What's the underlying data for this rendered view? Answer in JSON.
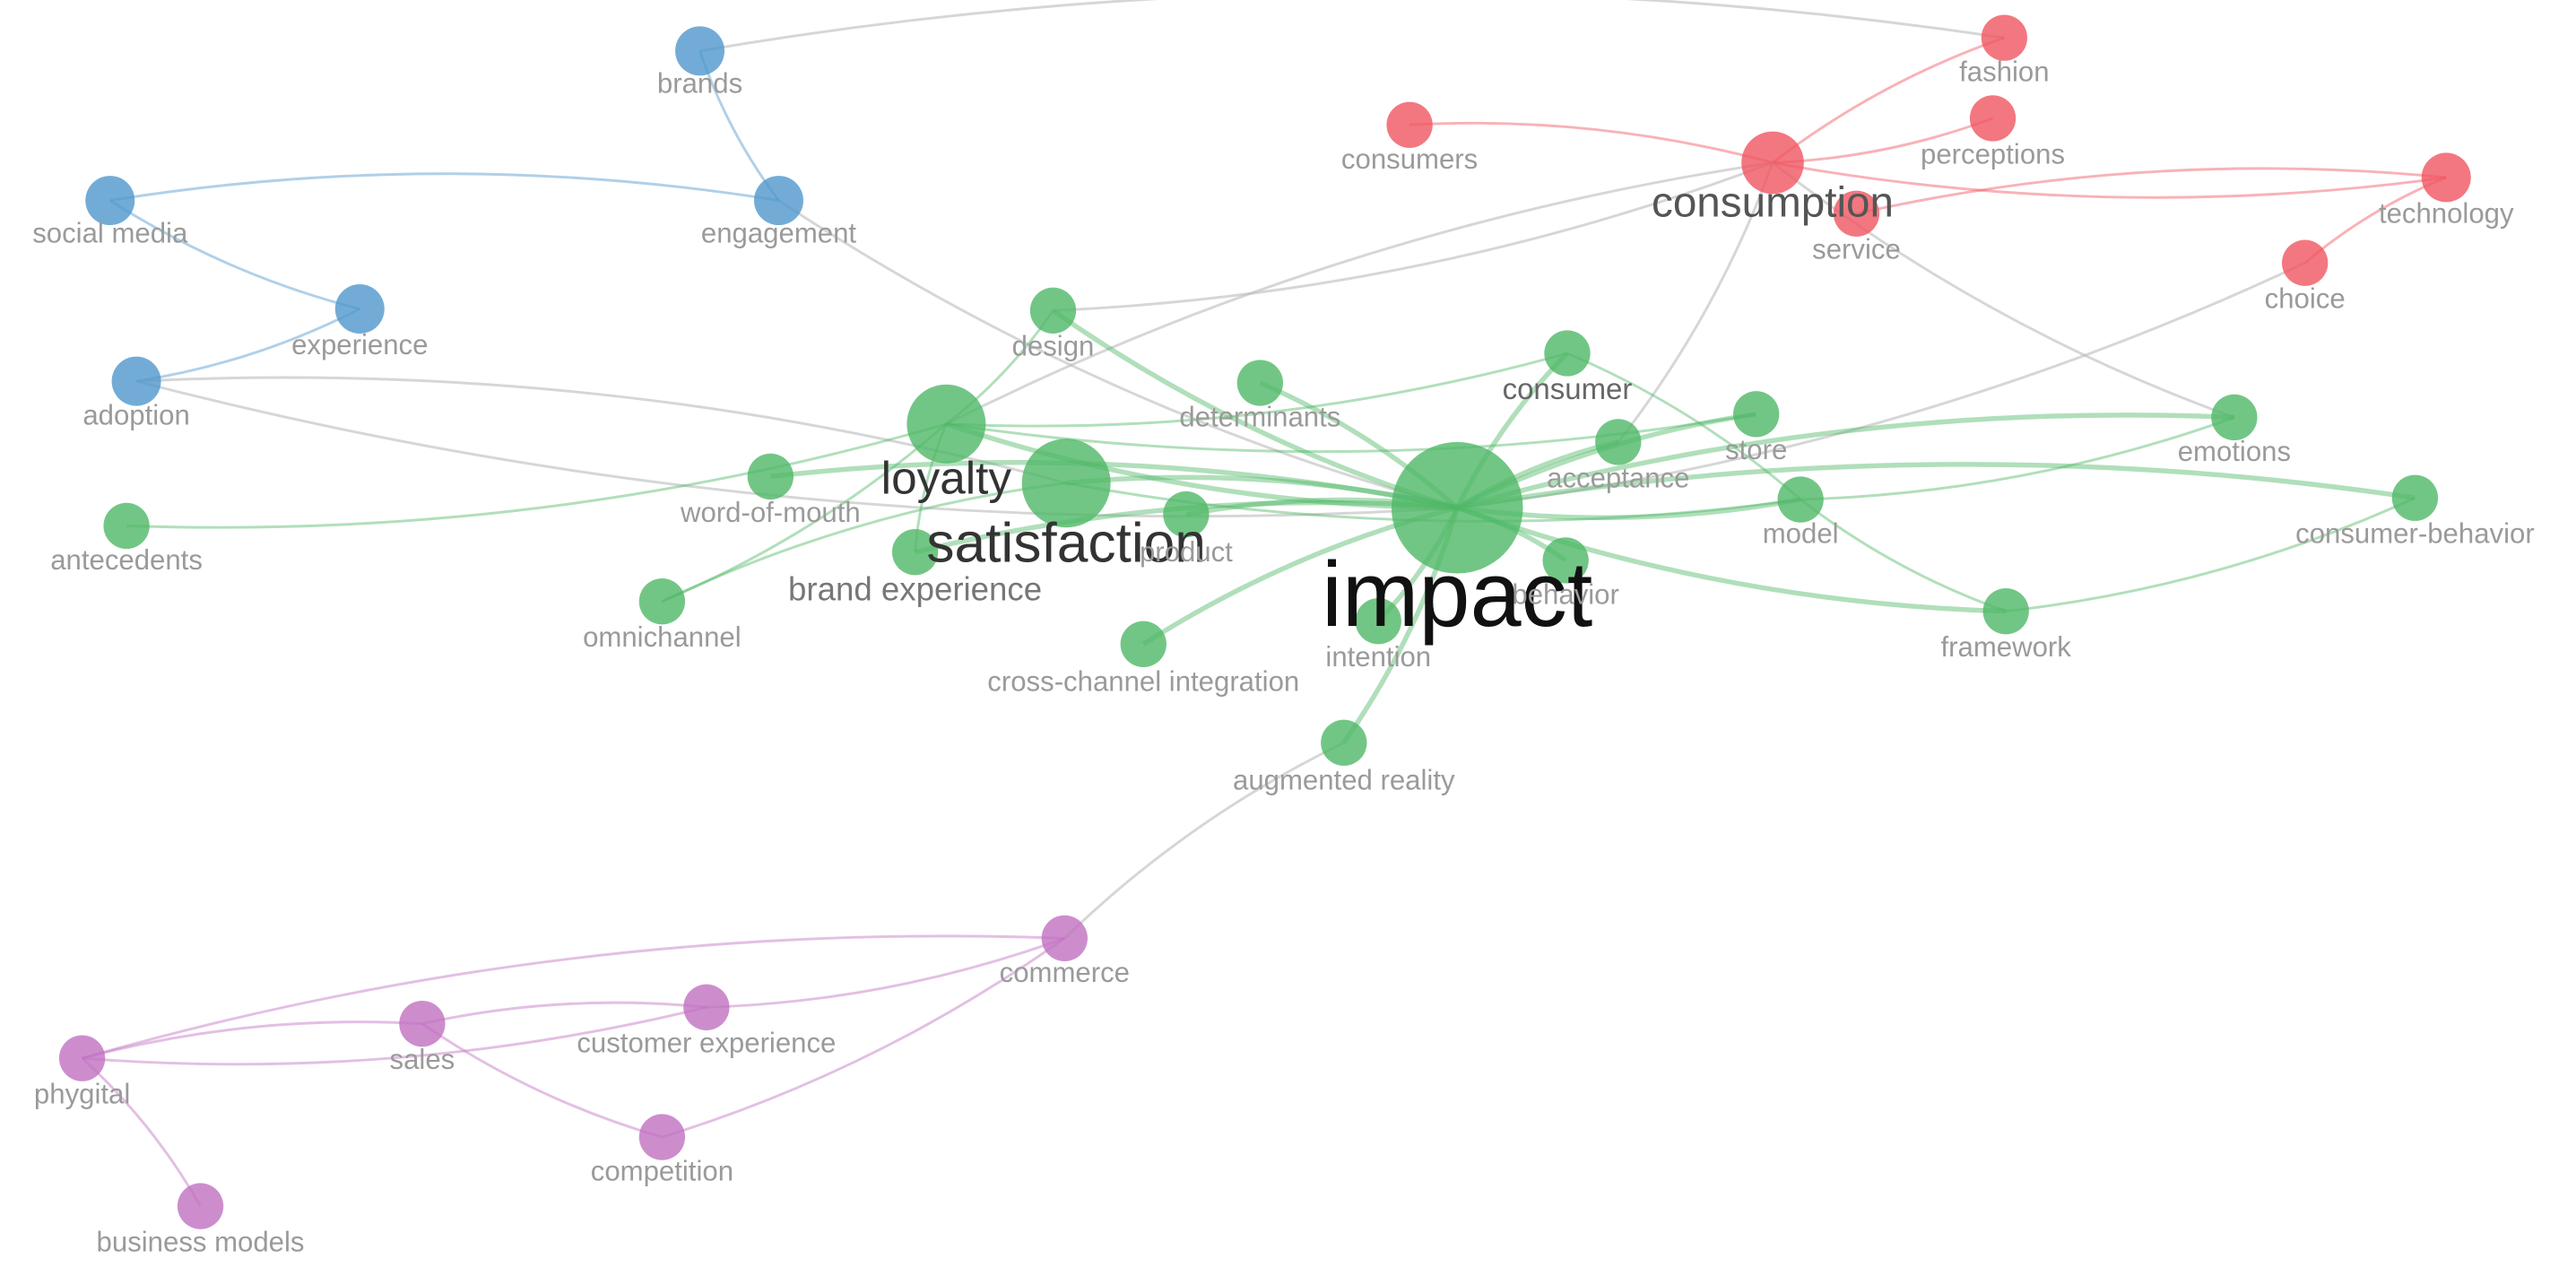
{
  "nodes": [
    {
      "label": "brands"
    },
    {
      "label": "social media"
    },
    {
      "label": "engagement"
    },
    {
      "label": "experience"
    },
    {
      "label": "adoption"
    },
    {
      "label": "fashion"
    },
    {
      "label": "consumers"
    },
    {
      "label": "perceptions"
    },
    {
      "label": "consumption"
    },
    {
      "label": "technology"
    },
    {
      "label": "service"
    },
    {
      "label": "choice"
    },
    {
      "label": "design"
    },
    {
      "label": "determinants"
    },
    {
      "label": "consumer"
    },
    {
      "label": "store"
    },
    {
      "label": "emotions"
    },
    {
      "label": "loyalty"
    },
    {
      "label": "satisfaction"
    },
    {
      "label": "acceptance"
    },
    {
      "label": "word-of-mouth"
    },
    {
      "label": "antecedents"
    },
    {
      "label": "model"
    },
    {
      "label": "consumer-behavior"
    },
    {
      "label": "impact"
    },
    {
      "label": "product"
    },
    {
      "label": "behavior"
    },
    {
      "label": "brand experience"
    },
    {
      "label": "omnichannel"
    },
    {
      "label": "intention"
    },
    {
      "label": "framework"
    },
    {
      "label": "cross-channel integration"
    },
    {
      "label": "augmented reality"
    },
    {
      "label": "commerce"
    },
    {
      "label": "customer experience"
    },
    {
      "label": "sales"
    },
    {
      "label": "phygital"
    },
    {
      "label": "competition"
    },
    {
      "label": "business models"
    }
  ]
}
